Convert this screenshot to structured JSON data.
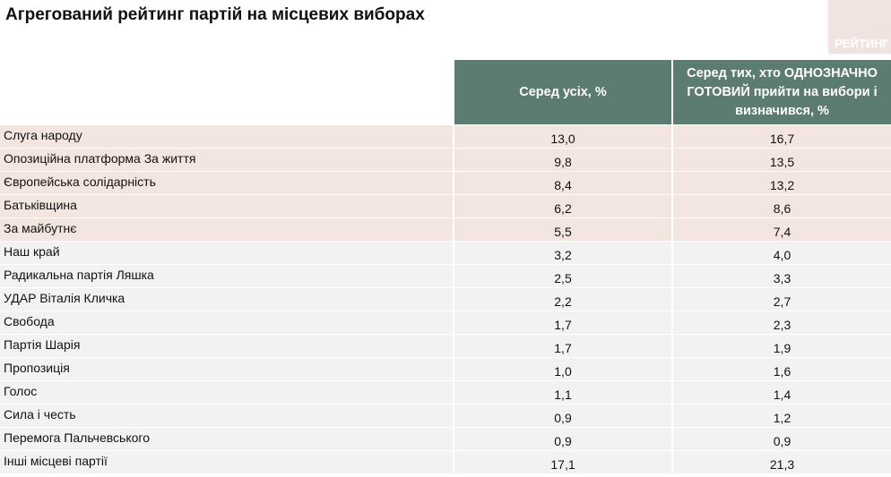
{
  "header": {
    "title": "Агрегований рейтинг партій на місцевих виборах",
    "logo": "РЕЙТИНГ"
  },
  "table": {
    "columns": [
      "Серед усіх, %",
      "Серед тих, хто ОДНОЗНАЧНО ГОТОВИЙ прийти на вибори і визначився, %"
    ],
    "rows": [
      [
        "Слуга народу",
        "13,0",
        "16,7"
      ],
      [
        "Опозиційна платформа За життя",
        "9,8",
        "13,5"
      ],
      [
        "Європейська солідарність",
        "8,4",
        "13,2"
      ],
      [
        "Батьківщина",
        "6,2",
        "8,6"
      ],
      [
        "За майбутнє",
        "5,5",
        "7,4"
      ],
      [
        "Наш край",
        "3,2",
        "4,0"
      ],
      [
        "Радикальна партія Ляшка",
        "2,5",
        "3,3"
      ],
      [
        "УДАР Віталія Кличка",
        "2,2",
        "2,7"
      ],
      [
        "Свобода",
        "1,7",
        "2,3"
      ],
      [
        "Партія Шарія",
        "1,7",
        "1,9"
      ],
      [
        "Пропозиція",
        "1,0",
        "1,6"
      ],
      [
        "Голос",
        "1,1",
        "1,4"
      ],
      [
        "Сила і честь",
        "0,9",
        "1,2"
      ],
      [
        "Перемога Пальчевського",
        "0,9",
        "0,9"
      ],
      [
        "Інші місцеві партії",
        "17,1",
        "21,3"
      ]
    ]
  }
}
